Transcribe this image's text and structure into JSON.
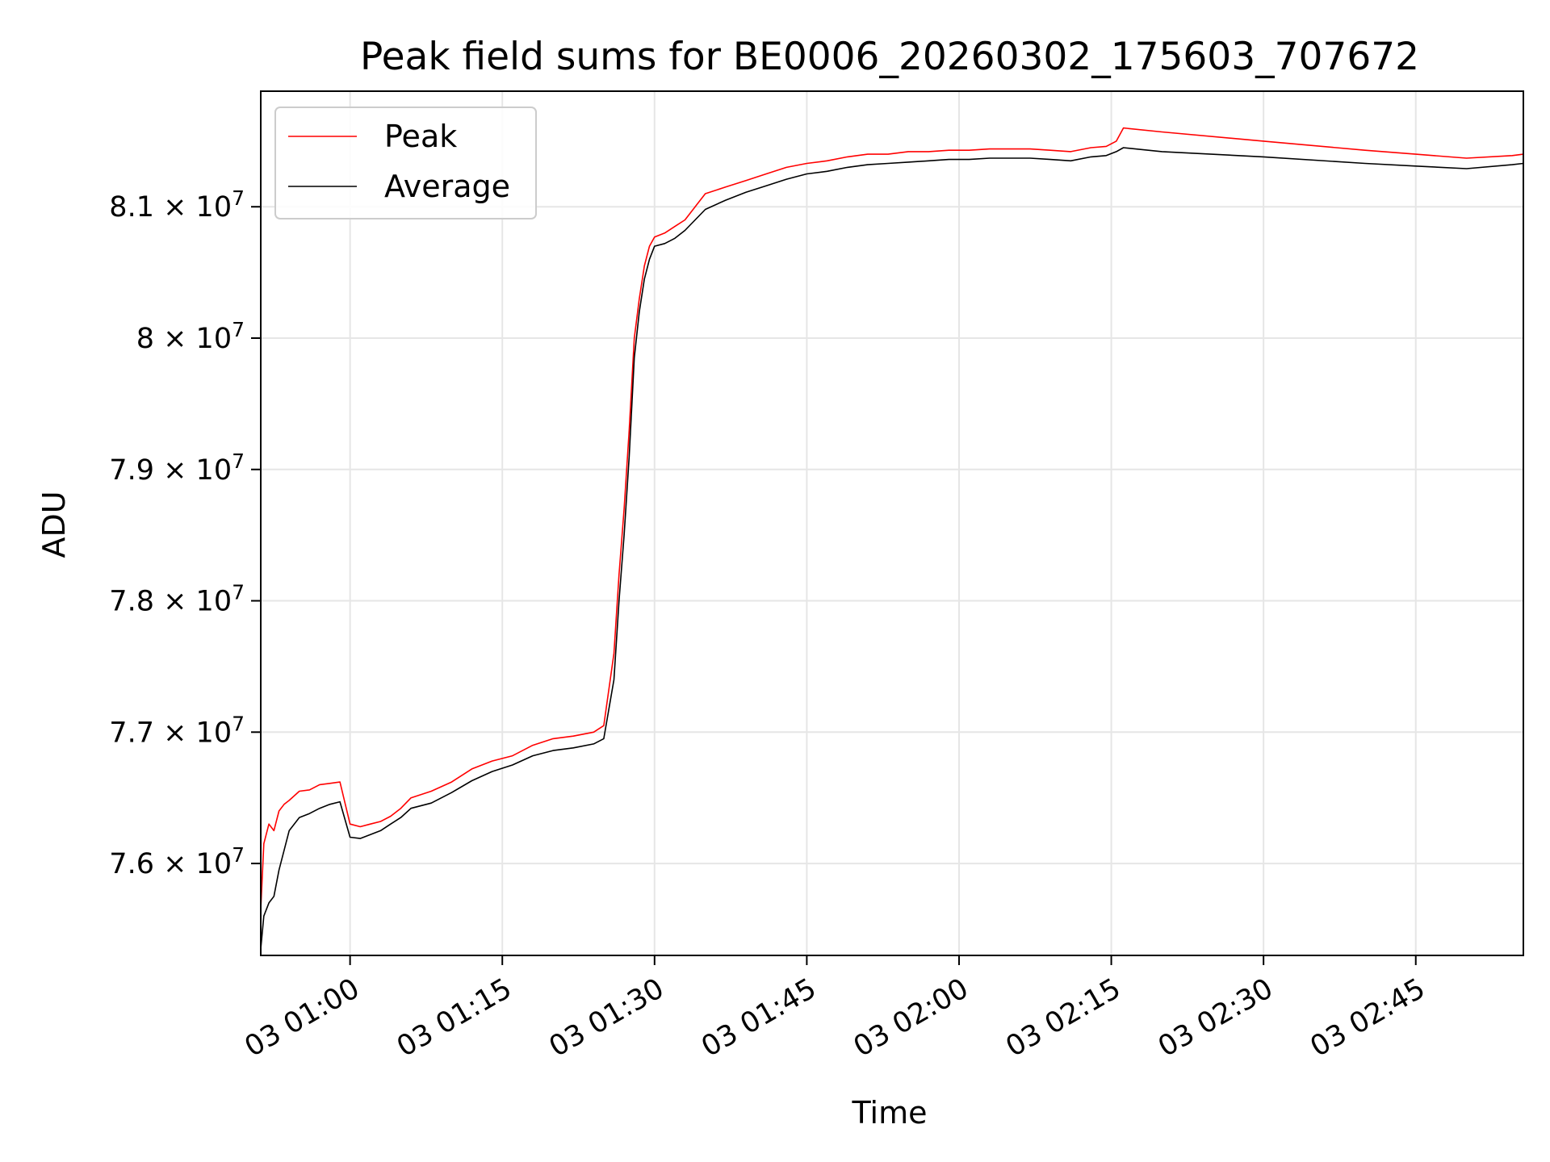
{
  "chart_data": {
    "type": "line",
    "title": "Peak field sums for BE0006_20260302_175603_707672",
    "xlabel": "Time",
    "ylabel": "ADU",
    "x_units": "minutes after 03 00:00",
    "xlim": [
      51.2,
      175.6
    ],
    "ylim": [
      75300000,
      81880000
    ],
    "grid": true,
    "legend_position": "upper-left",
    "x_ticks": [
      {
        "value": 60,
        "label": "03 01:00"
      },
      {
        "value": 75,
        "label": "03 01:15"
      },
      {
        "value": 90,
        "label": "03 01:30"
      },
      {
        "value": 105,
        "label": "03 01:45"
      },
      {
        "value": 120,
        "label": "03 02:00"
      },
      {
        "value": 135,
        "label": "03 02:15"
      },
      {
        "value": 150,
        "label": "03 02:30"
      },
      {
        "value": 165,
        "label": "03 02:45"
      }
    ],
    "y_ticks": [
      {
        "value": 76000000,
        "mantissa": "7.6",
        "base": "× 10",
        "exponent": "7"
      },
      {
        "value": 77000000,
        "mantissa": "7.7",
        "base": "× 10",
        "exponent": "7"
      },
      {
        "value": 78000000,
        "mantissa": "7.8",
        "base": "× 10",
        "exponent": "7"
      },
      {
        "value": 79000000,
        "mantissa": "7.9",
        "base": "× 10",
        "exponent": "7"
      },
      {
        "value": 80000000,
        "mantissa": "8",
        "base": "× 10",
        "exponent": "7"
      },
      {
        "value": 81000000,
        "mantissa": "8.1",
        "base": "× 10",
        "exponent": "7"
      }
    ],
    "series": [
      {
        "name": "Peak",
        "color": "#ff0000",
        "x": [
          51.2,
          51.5,
          52.0,
          52.5,
          53.0,
          53.5,
          54.0,
          55.0,
          56.0,
          57.0,
          58.0,
          59.0,
          60.0,
          61.0,
          62.0,
          63.0,
          64.0,
          65.0,
          66.0,
          68.0,
          70.0,
          72.0,
          74.0,
          76.0,
          78.0,
          80.0,
          82.0,
          84.0,
          85.0,
          86.0,
          86.5,
          87.0,
          87.5,
          88.0,
          88.5,
          89.0,
          89.5,
          90.0,
          91.0,
          92.0,
          93.0,
          94.0,
          95.0,
          97.0,
          99.0,
          101.0,
          103.0,
          105.0,
          107.0,
          109.0,
          111.0,
          113.0,
          115.0,
          117.0,
          119.0,
          121.0,
          123.0,
          125.0,
          127.0,
          129.0,
          131.0,
          133.0,
          134.5,
          135.5,
          136.2,
          140.0,
          150.0,
          160.0,
          165.0,
          170.0,
          174.5,
          175.6
        ],
        "y": [
          75650000,
          76150000,
          76300000,
          76250000,
          76400000,
          76450000,
          76480000,
          76550000,
          76560000,
          76600000,
          76610000,
          76620000,
          76300000,
          76280000,
          76300000,
          76320000,
          76360000,
          76420000,
          76500000,
          76550000,
          76620000,
          76720000,
          76780000,
          76820000,
          76900000,
          76950000,
          76970000,
          77000000,
          77050000,
          77600000,
          78200000,
          78700000,
          79300000,
          80000000,
          80300000,
          80550000,
          80700000,
          80770000,
          80800000,
          80850000,
          80900000,
          81000000,
          81100000,
          81150000,
          81200000,
          81250000,
          81300000,
          81330000,
          81350000,
          81380000,
          81400000,
          81400000,
          81420000,
          81420000,
          81430000,
          81430000,
          81440000,
          81440000,
          81440000,
          81430000,
          81420000,
          81450000,
          81460000,
          81500000,
          81600000,
          81570000,
          81500000,
          81430000,
          81400000,
          81370000,
          81390000,
          81400000
        ]
      },
      {
        "name": "Average",
        "color": "#000000",
        "x": [
          51.2,
          51.5,
          52.0,
          52.5,
          53.0,
          53.5,
          54.0,
          55.0,
          56.0,
          57.0,
          58.0,
          59.0,
          60.0,
          61.0,
          62.0,
          63.0,
          64.0,
          65.0,
          66.0,
          68.0,
          70.0,
          72.0,
          74.0,
          76.0,
          78.0,
          80.0,
          82.0,
          84.0,
          85.0,
          86.0,
          86.5,
          87.0,
          87.5,
          88.0,
          88.5,
          89.0,
          89.5,
          90.0,
          91.0,
          92.0,
          93.0,
          94.0,
          95.0,
          97.0,
          99.0,
          101.0,
          103.0,
          105.0,
          107.0,
          109.0,
          111.0,
          113.0,
          115.0,
          117.0,
          119.0,
          121.0,
          123.0,
          125.0,
          127.0,
          129.0,
          131.0,
          133.0,
          134.5,
          135.5,
          136.2,
          140.0,
          150.0,
          160.0,
          165.0,
          170.0,
          174.5,
          175.6
        ],
        "y": [
          75350000,
          75600000,
          75700000,
          75750000,
          75950000,
          76100000,
          76250000,
          76350000,
          76380000,
          76420000,
          76450000,
          76470000,
          76200000,
          76190000,
          76220000,
          76250000,
          76300000,
          76350000,
          76420000,
          76460000,
          76540000,
          76630000,
          76700000,
          76750000,
          76820000,
          76860000,
          76880000,
          76910000,
          76950000,
          77400000,
          78000000,
          78500000,
          79100000,
          79850000,
          80200000,
          80450000,
          80600000,
          80700000,
          80720000,
          80760000,
          80820000,
          80900000,
          80980000,
          81050000,
          81110000,
          81160000,
          81210000,
          81250000,
          81270000,
          81300000,
          81320000,
          81330000,
          81340000,
          81350000,
          81360000,
          81360000,
          81370000,
          81370000,
          81370000,
          81360000,
          81350000,
          81380000,
          81390000,
          81420000,
          81450000,
          81420000,
          81380000,
          81330000,
          81310000,
          81290000,
          81320000,
          81330000
        ]
      }
    ]
  }
}
